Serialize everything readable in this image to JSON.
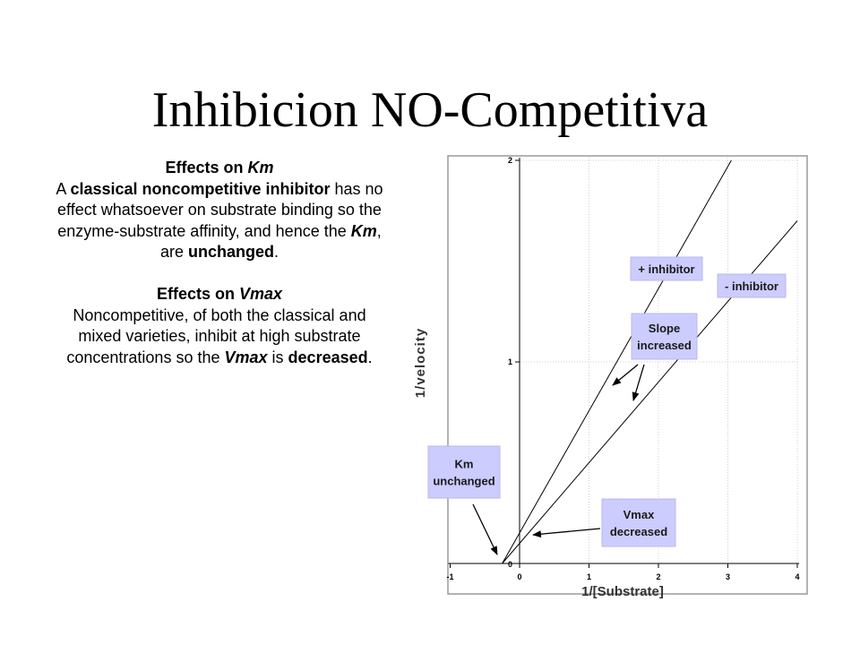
{
  "title": "Inhibicion NO-Competitiva",
  "km_section": {
    "heading": [
      "Effects on ",
      "Km"
    ],
    "body": [
      "A ",
      "classical noncompetitive inhibitor",
      " has no effect whatsoever on substrate binding so the enzyme-substrate affinity, and hence the ",
      "Km",
      ", are ",
      "unchanged",
      "."
    ]
  },
  "vmax_section": {
    "heading": [
      "Effects on ",
      "Vmax"
    ],
    "body": [
      "Noncompetitive, of both the classical and mixed varieties, inhibit at high substrate concentrations so the ",
      "Vmax",
      " is ",
      "decreased",
      "."
    ]
  },
  "chart_data": {
    "type": "line",
    "xlabel": "1/[Substrate]",
    "ylabel": "1/velocity",
    "xlim": [
      -1,
      4
    ],
    "ylim": [
      0,
      2
    ],
    "x_ticks": [
      "-1",
      "0",
      "1",
      "2",
      "3",
      "4"
    ],
    "y_ticks": [
      "0",
      "1",
      "2"
    ],
    "series": [
      {
        "name": "+ inhibitor",
        "x": [
          -0.25,
          3.05
        ],
        "y": [
          0.0,
          2.0
        ]
      },
      {
        "name": "- inhibitor",
        "x": [
          -0.25,
          4.0
        ],
        "y": [
          0.0,
          1.7
        ]
      }
    ],
    "annotations": [
      {
        "id": "plus_inhibitor",
        "lines": [
          "+ inhibitor"
        ]
      },
      {
        "id": "minus_inhibitor",
        "lines": [
          "- inhibitor"
        ]
      },
      {
        "id": "slope",
        "lines": [
          "Slope",
          "increased"
        ]
      },
      {
        "id": "km",
        "lines": [
          "Km",
          "unchanged"
        ]
      },
      {
        "id": "vmax",
        "lines": [
          "Vmax",
          "decreased"
        ]
      }
    ],
    "annotation_color": "#ccccff"
  }
}
